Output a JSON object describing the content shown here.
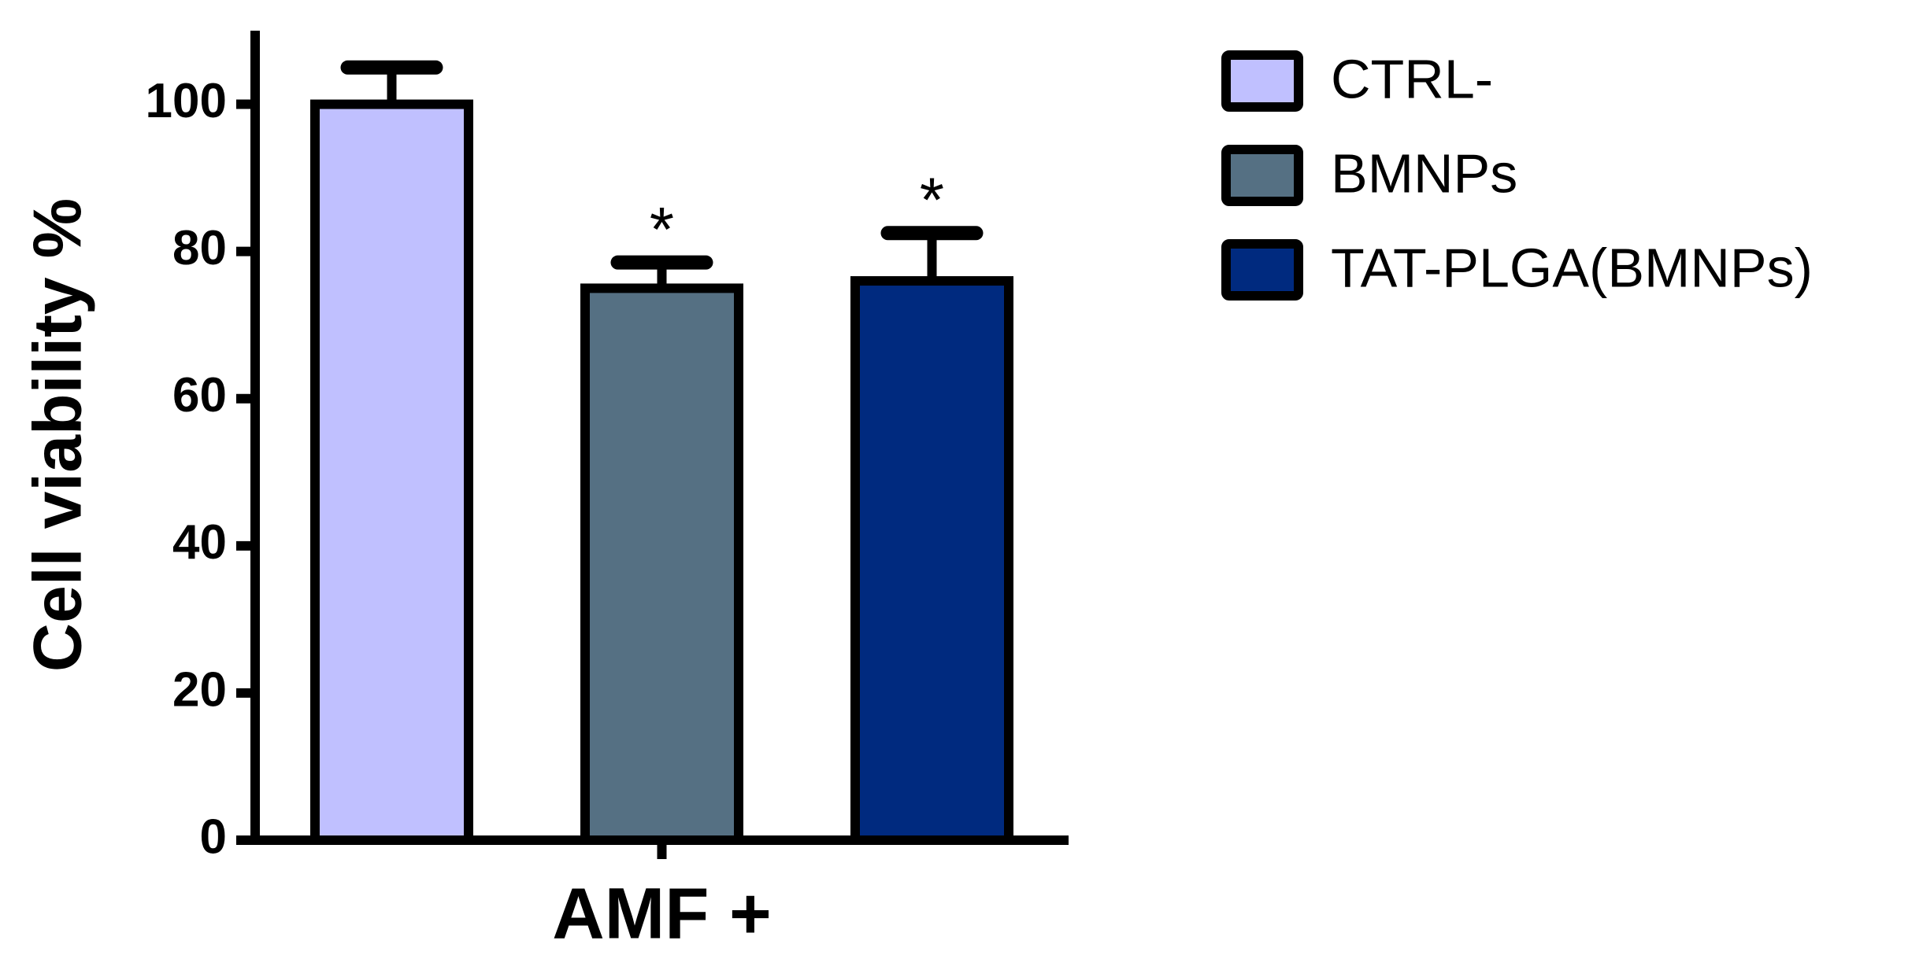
{
  "chart_data": {
    "type": "bar",
    "y_label": "Cell viability %",
    "categories": [
      "AMF +"
    ],
    "series": [
      {
        "name": "CTRL-",
        "color": "#c0c0ff",
        "values": [
          100
        ],
        "errors": [
          5
        ]
      },
      {
        "name": "BMNPs",
        "color": "#557083",
        "values": [
          75
        ],
        "errors": [
          3.5
        ],
        "annotation": "*"
      },
      {
        "name": "TAT-PLGA(BMNPs)",
        "color": "#002a7f",
        "values": [
          76
        ],
        "errors": [
          6.5
        ],
        "annotation": "*"
      }
    ],
    "ylim": [
      0,
      110
    ],
    "yticks": [
      0,
      20,
      40,
      60,
      80,
      100
    ],
    "grid": false,
    "legend": "right"
  }
}
